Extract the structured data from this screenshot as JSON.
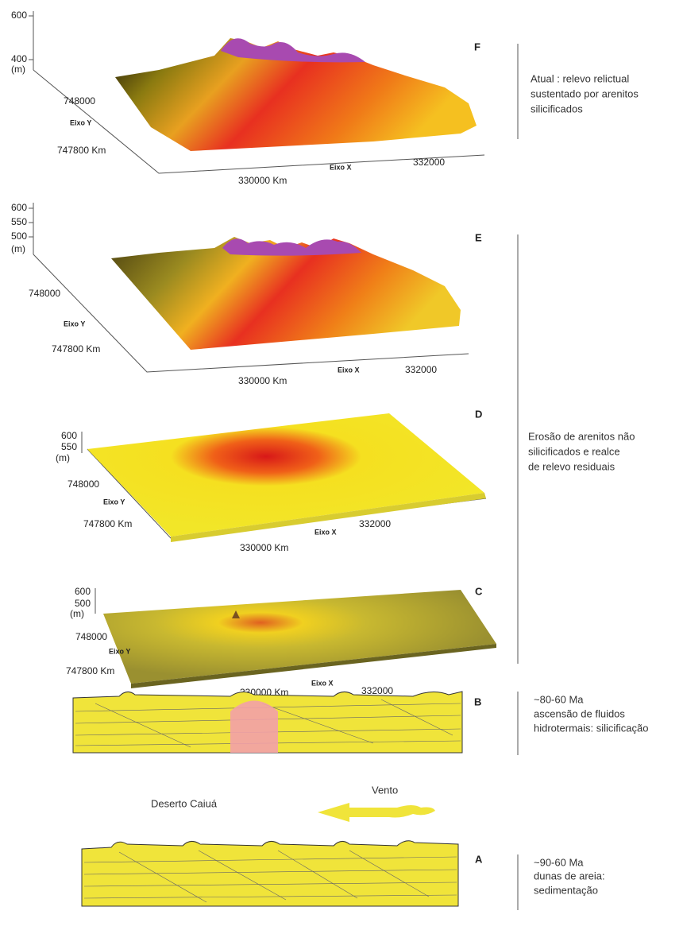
{
  "panels": [
    {
      "label": "F",
      "z_ticks": [
        "600",
        "400",
        "(m)"
      ],
      "y_ticks": [
        "748000",
        "747800 Km"
      ],
      "y_axis": "Eixo Y",
      "x_axis": "Eixo X",
      "x_ticks": [
        "330000 Km",
        "332000"
      ]
    },
    {
      "label": "E",
      "z_ticks": [
        "600",
        "550",
        "500",
        "(m)"
      ],
      "y_ticks": [
        "748000",
        "747800 Km"
      ],
      "y_axis": "Eixo Y",
      "x_axis": "Eixo X",
      "x_ticks": [
        "330000 Km",
        "332000"
      ]
    },
    {
      "label": "D",
      "z_ticks": [
        "600",
        "550",
        "(m)"
      ],
      "y_ticks": [
        "748000",
        "747800 Km"
      ],
      "y_axis": "Eixo Y",
      "x_axis": "Eixo X",
      "x_ticks": [
        "330000 Km",
        "332000"
      ]
    },
    {
      "label": "C",
      "z_ticks": [
        "600",
        "500",
        "(m)"
      ],
      "y_ticks": [
        "748000",
        "747800 Km"
      ],
      "y_axis": "Eixo Y",
      "x_axis": "Eixo X",
      "x_ticks": [
        "330000 Km",
        "332000"
      ]
    },
    {
      "label": "B"
    },
    {
      "label": "A"
    }
  ],
  "annotations": [
    [
      "Atual : relevo relictual",
      "sustentado por arenitos",
      "silicificados"
    ],
    [
      "Erosão de arenitos não",
      "silicificados e realce",
      "de relevo residuais"
    ],
    [
      "~80-60 Ma",
      "ascensão de fluidos",
      "hidrotermais: silicificação"
    ],
    [
      "~90-60 Ma",
      "dunas de areia:",
      "sedimentação"
    ]
  ],
  "scene": {
    "desert": "Deserto Caiuá",
    "wind": "Vento"
  }
}
